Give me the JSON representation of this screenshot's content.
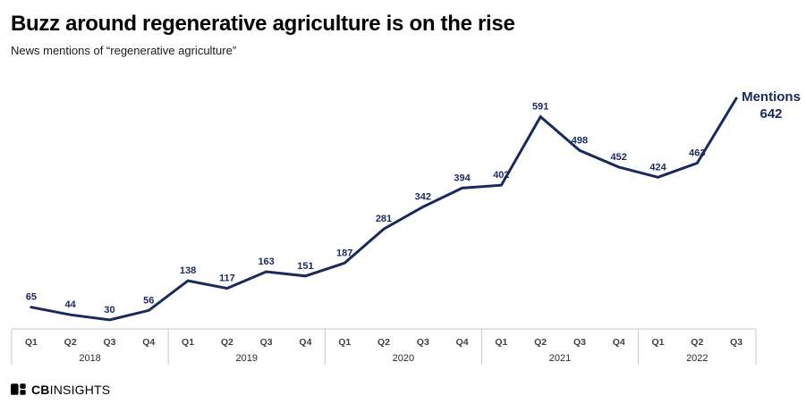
{
  "header": {
    "title": "Buzz around regenerative agriculture is on the rise",
    "subtitle": "News mentions of “regenerative agriculture”"
  },
  "chart_data": {
    "type": "line",
    "title": "Buzz around regenerative agriculture is on the rise",
    "subtitle": "News mentions of “regenerative agriculture”",
    "categories": [
      "2018 Q1",
      "2018 Q2",
      "2018 Q3",
      "2018 Q4",
      "2019 Q1",
      "2019 Q2",
      "2019 Q3",
      "2019 Q4",
      "2020 Q1",
      "2020 Q2",
      "2020 Q3",
      "2020 Q4",
      "2021 Q1",
      "2021 Q2",
      "2021 Q3",
      "2021 Q4",
      "2022 Q1",
      "2022 Q2",
      "2022 Q3"
    ],
    "values": [
      65,
      44,
      30,
      56,
      138,
      117,
      163,
      151,
      187,
      281,
      342,
      394,
      402,
      591,
      498,
      452,
      424,
      463,
      642
    ],
    "year_groups": [
      {
        "label": "2018",
        "quarters": [
          "Q1",
          "Q2",
          "Q3",
          "Q4"
        ]
      },
      {
        "label": "2019",
        "quarters": [
          "Q1",
          "Q2",
          "Q3",
          "Q4"
        ]
      },
      {
        "label": "2020",
        "quarters": [
          "Q1",
          "Q2",
          "Q3",
          "Q4"
        ]
      },
      {
        "label": "2021",
        "quarters": [
          "Q1",
          "Q2",
          "Q3",
          "Q4"
        ]
      },
      {
        "label": "2022",
        "quarters": [
          "Q1",
          "Q2",
          "Q3"
        ]
      }
    ],
    "annotation": {
      "label": "Mentions",
      "value": "642"
    },
    "xlabel": "",
    "ylabel": "Mentions",
    "ylim": [
      0,
      700
    ],
    "grid": false,
    "legend_position": "end-of-line",
    "line_color": "#1a2a5c",
    "data_label_color": "#1a2a5c",
    "axis_line_color": "#c9c9c9",
    "axis_text_color": "#404040"
  },
  "footer": {
    "logo_bold": "CB",
    "logo_rest": "INSIGHTS"
  }
}
